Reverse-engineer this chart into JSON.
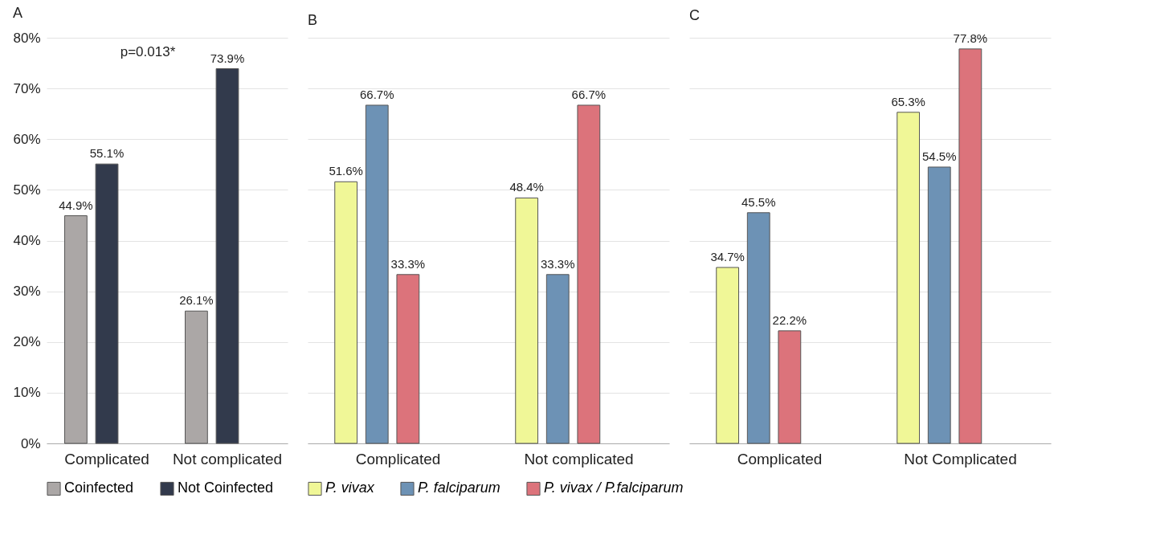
{
  "chart_data": [
    {
      "type": "bar",
      "title": "A",
      "categories": [
        "Complicated",
        "Not  complicated"
      ],
      "series": [
        {
          "name": "Coinfected",
          "color": "#aba7a6",
          "values": [
            44.9,
            26.1
          ],
          "value_labels": [
            "44.9%",
            "26.1%"
          ]
        },
        {
          "name": "Not Coinfected",
          "color": "#323a4c",
          "values": [
            55.1,
            73.9
          ],
          "value_labels": [
            "55.1%",
            "73.9%"
          ]
        }
      ],
      "ylim": [
        0,
        80
      ],
      "yticks": [
        {
          "value": 0,
          "label": "0%"
        },
        {
          "value": 10,
          "label": "10%"
        },
        {
          "value": 20,
          "label": "20%"
        },
        {
          "value": 30,
          "label": "30%"
        },
        {
          "value": 40,
          "label": "40%"
        },
        {
          "value": 50,
          "label": "50%"
        },
        {
          "value": 60,
          "label": "60%"
        },
        {
          "value": 70,
          "label": "70%"
        },
        {
          "value": 80,
          "label": "80%"
        }
      ],
      "annotations": [
        "p=0.013*"
      ],
      "grid": "y",
      "legend": "bottom"
    },
    {
      "type": "bar",
      "title": "B",
      "categories": [
        "Complicated",
        "Not  complicated"
      ],
      "series": [
        {
          "name": "P. vivax",
          "color": "#f0f797",
          "values": [
            51.6,
            48.4
          ],
          "value_labels": [
            "51.6%",
            "48.4%"
          ]
        },
        {
          "name": "P. falciparum",
          "color": "#6d92b5",
          "values": [
            66.7,
            33.3
          ],
          "value_labels": [
            "66.7%",
            "33.3%"
          ]
        },
        {
          "name": "P. vivax / P.falciparum",
          "color": "#dc737b",
          "values": [
            33.3,
            66.7
          ],
          "value_labels": [
            "33.3%",
            "66.7%"
          ]
        }
      ],
      "ylim": [
        0,
        80
      ],
      "yticks": [
        0,
        10,
        20,
        30,
        40,
        50,
        60,
        70,
        80
      ],
      "tick_labels": "x",
      "grid": "y",
      "legend": "bottom"
    },
    {
      "type": "bar",
      "title": "C",
      "categories": [
        "Complicated",
        "Not Complicated"
      ],
      "series": [
        {
          "name": "P. vivax",
          "color": "#f0f797",
          "values": [
            34.7,
            65.3
          ],
          "value_labels": [
            "34.7%",
            "65.3%"
          ]
        },
        {
          "name": "P. falciparum",
          "color": "#6d92b5",
          "values": [
            45.5,
            54.5
          ],
          "value_labels": [
            "45.5%",
            "54.5%"
          ]
        },
        {
          "name": "P. vivax / P.falciparum",
          "color": "#dc737b",
          "values": [
            22.2,
            77.8
          ],
          "value_labels": [
            "22.2%",
            "77.8%"
          ]
        }
      ],
      "ylim": [
        0,
        80
      ],
      "yticks": [
        0,
        10,
        20,
        30,
        40,
        50,
        60,
        70,
        80
      ],
      "tick_labels": "x",
      "grid": "y",
      "legend": "bottom"
    }
  ]
}
